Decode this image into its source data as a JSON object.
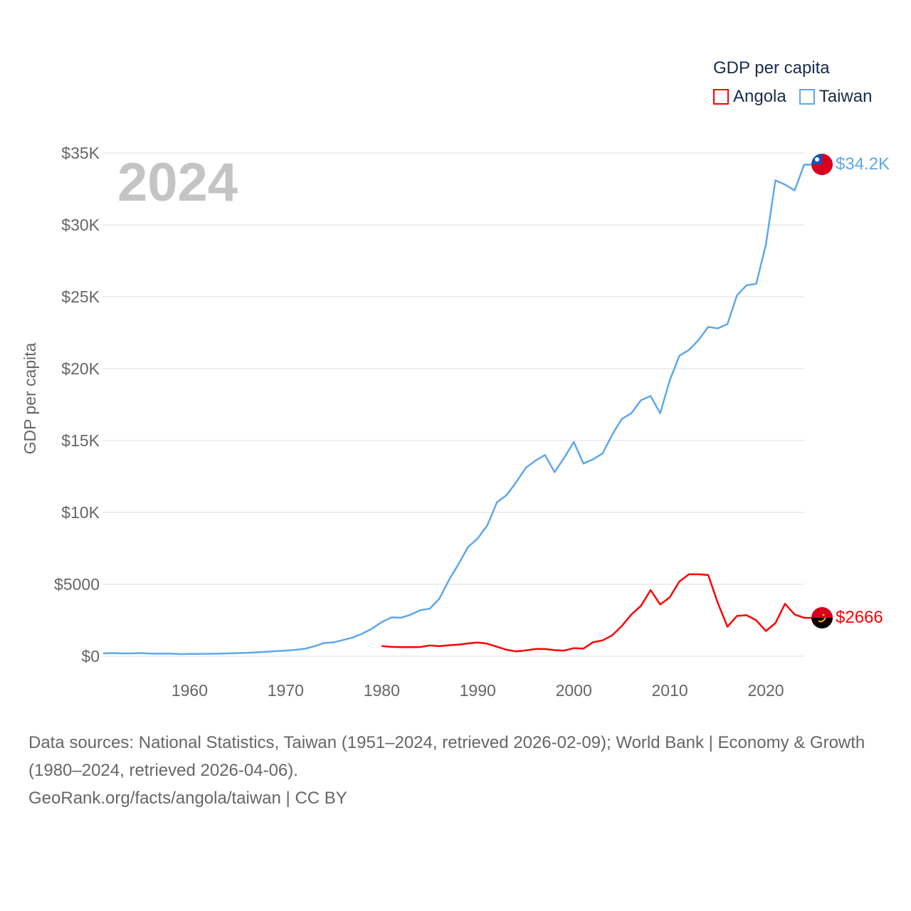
{
  "chart_data": {
    "type": "line",
    "title": "",
    "year_label": "2024",
    "ylabel": "GDP per capita",
    "xlabel": "",
    "xlim": [
      1951,
      2024
    ],
    "ylim": [
      0,
      35000
    ],
    "x_ticks": [
      1960,
      1970,
      1980,
      1990,
      2000,
      2010,
      2020
    ],
    "x_tick_labels": [
      "1960",
      "1970",
      "1980",
      "1990",
      "2000",
      "2010",
      "2020"
    ],
    "y_ticks": [
      0,
      5000,
      10000,
      15000,
      20000,
      25000,
      30000,
      35000
    ],
    "y_tick_labels": [
      "$0",
      "$5000",
      "$10K",
      "$15K",
      "$20K",
      "$25K",
      "$30K",
      "$35K"
    ],
    "grid": true,
    "legend": {
      "title": "GDP per capita",
      "placement": "top-right"
    },
    "series": [
      {
        "name": "Angola",
        "color": "#ff0000",
        "end_label": "$2666",
        "flag_icon": "angola-flag",
        "start_year": 1980,
        "values": [
          710,
          650,
          630,
          630,
          640,
          750,
          700,
          760,
          800,
          890,
          950,
          870,
          660,
          450,
          330,
          400,
          500,
          500,
          420,
          390,
          560,
          530,
          970,
          1100,
          1450,
          2100,
          2900,
          3500,
          4600,
          3600,
          4100,
          5200,
          5700,
          5700,
          5650,
          3700,
          2050,
          2800,
          2850,
          2500,
          1750,
          2300,
          3650,
          2900,
          2666
        ]
      },
      {
        "name": "Taiwan",
        "color": "#5ea8ec",
        "end_label": "$34.2K",
        "flag_icon": "taiwan-flag",
        "start_year": 1951,
        "values": [
          200,
          220,
          200,
          200,
          220,
          180,
          180,
          180,
          150,
          160,
          160,
          170,
          180,
          200,
          220,
          240,
          270,
          310,
          350,
          390,
          440,
          520,
          690,
          920,
          960,
          1130,
          1300,
          1580,
          1920,
          2370,
          2700,
          2680,
          2880,
          3200,
          3300,
          4000,
          5300,
          6400,
          7600,
          8200,
          9100,
          10700,
          11200,
          12100,
          13100,
          13600,
          14000,
          12800,
          13800,
          14900,
          13400,
          13700,
          14100,
          15400,
          16500,
          16900,
          17800,
          18100,
          16900,
          19200,
          20900,
          21300,
          22000,
          22900,
          22800,
          23100,
          25100,
          25800,
          25900,
          28600,
          33100,
          32800,
          32400,
          34200
        ]
      }
    ]
  },
  "footer": {
    "sources": "Data sources: National Statistics, Taiwan (1951–2024, retrieved 2026-02-09); World Bank | Economy & Growth (1980–2024, retrieved 2026-04-06).",
    "link": "GeoRank.org/facts/angola/taiwan | CC BY"
  }
}
